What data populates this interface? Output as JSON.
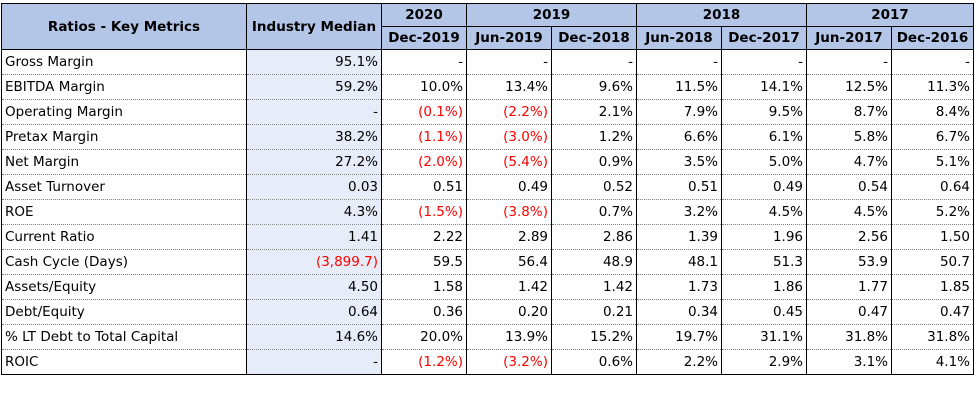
{
  "header": {
    "title": "Ratios - Key Metrics",
    "median": "Industry Median",
    "years": [
      {
        "label": "2020",
        "span": 1
      },
      {
        "label": "2019",
        "span": 2
      },
      {
        "label": "2018",
        "span": 2
      },
      {
        "label": "2017",
        "span": 2
      }
    ],
    "periods": [
      "Dec-2019",
      "Jun-2019",
      "Dec-2018",
      "Jun-2018",
      "Dec-2017",
      "Jun-2017",
      "Dec-2016"
    ]
  },
  "rows": [
    {
      "name": "Gross Margin",
      "median": "95.1%",
      "values": [
        "-",
        "-",
        "-",
        "-",
        "-",
        "-",
        "-"
      ]
    },
    {
      "name": "EBITDA Margin",
      "median": "59.2%",
      "values": [
        "10.0%",
        "13.4%",
        "9.6%",
        "11.5%",
        "14.1%",
        "12.5%",
        "11.3%"
      ]
    },
    {
      "name": "Operating Margin",
      "median": "-",
      "values": [
        "(0.1%)",
        "(2.2%)",
        "2.1%",
        "7.9%",
        "9.5%",
        "8.7%",
        "8.4%"
      ]
    },
    {
      "name": "Pretax Margin",
      "median": "38.2%",
      "values": [
        "(1.1%)",
        "(3.0%)",
        "1.2%",
        "6.6%",
        "6.1%",
        "5.8%",
        "6.7%"
      ]
    },
    {
      "name": "Net Margin",
      "median": "27.2%",
      "values": [
        "(2.0%)",
        "(5.4%)",
        "0.9%",
        "3.5%",
        "5.0%",
        "4.7%",
        "5.1%"
      ]
    },
    {
      "name": "Asset Turnover",
      "median": "0.03",
      "values": [
        "0.51",
        "0.49",
        "0.52",
        "0.51",
        "0.49",
        "0.54",
        "0.64"
      ]
    },
    {
      "name": "ROE",
      "median": "4.3%",
      "values": [
        "(1.5%)",
        "(3.8%)",
        "0.7%",
        "3.2%",
        "4.5%",
        "4.5%",
        "5.2%"
      ]
    },
    {
      "name": "Current Ratio",
      "median": "1.41",
      "values": [
        "2.22",
        "2.89",
        "2.86",
        "1.39",
        "1.96",
        "2.56",
        "1.50"
      ]
    },
    {
      "name": "Cash Cycle (Days)",
      "median": "(3,899.7)",
      "values": [
        "59.5",
        "56.4",
        "48.9",
        "48.1",
        "51.3",
        "53.9",
        "50.7"
      ]
    },
    {
      "name": "Assets/Equity",
      "median": "4.50",
      "values": [
        "1.58",
        "1.42",
        "1.42",
        "1.73",
        "1.86",
        "1.77",
        "1.85"
      ]
    },
    {
      "name": "Debt/Equity",
      "median": "0.64",
      "values": [
        "0.36",
        "0.20",
        "0.21",
        "0.34",
        "0.45",
        "0.47",
        "0.47"
      ]
    },
    {
      "name": "% LT Debt to Total Capital",
      "median": "14.6%",
      "values": [
        "20.0%",
        "13.9%",
        "15.2%",
        "19.7%",
        "31.1%",
        "31.8%",
        "31.8%"
      ]
    },
    {
      "name": "ROIC",
      "median": "-",
      "values": [
        "(1.2%)",
        "(3.2%)",
        "0.6%",
        "2.2%",
        "2.9%",
        "3.1%",
        "4.1%"
      ]
    }
  ]
}
